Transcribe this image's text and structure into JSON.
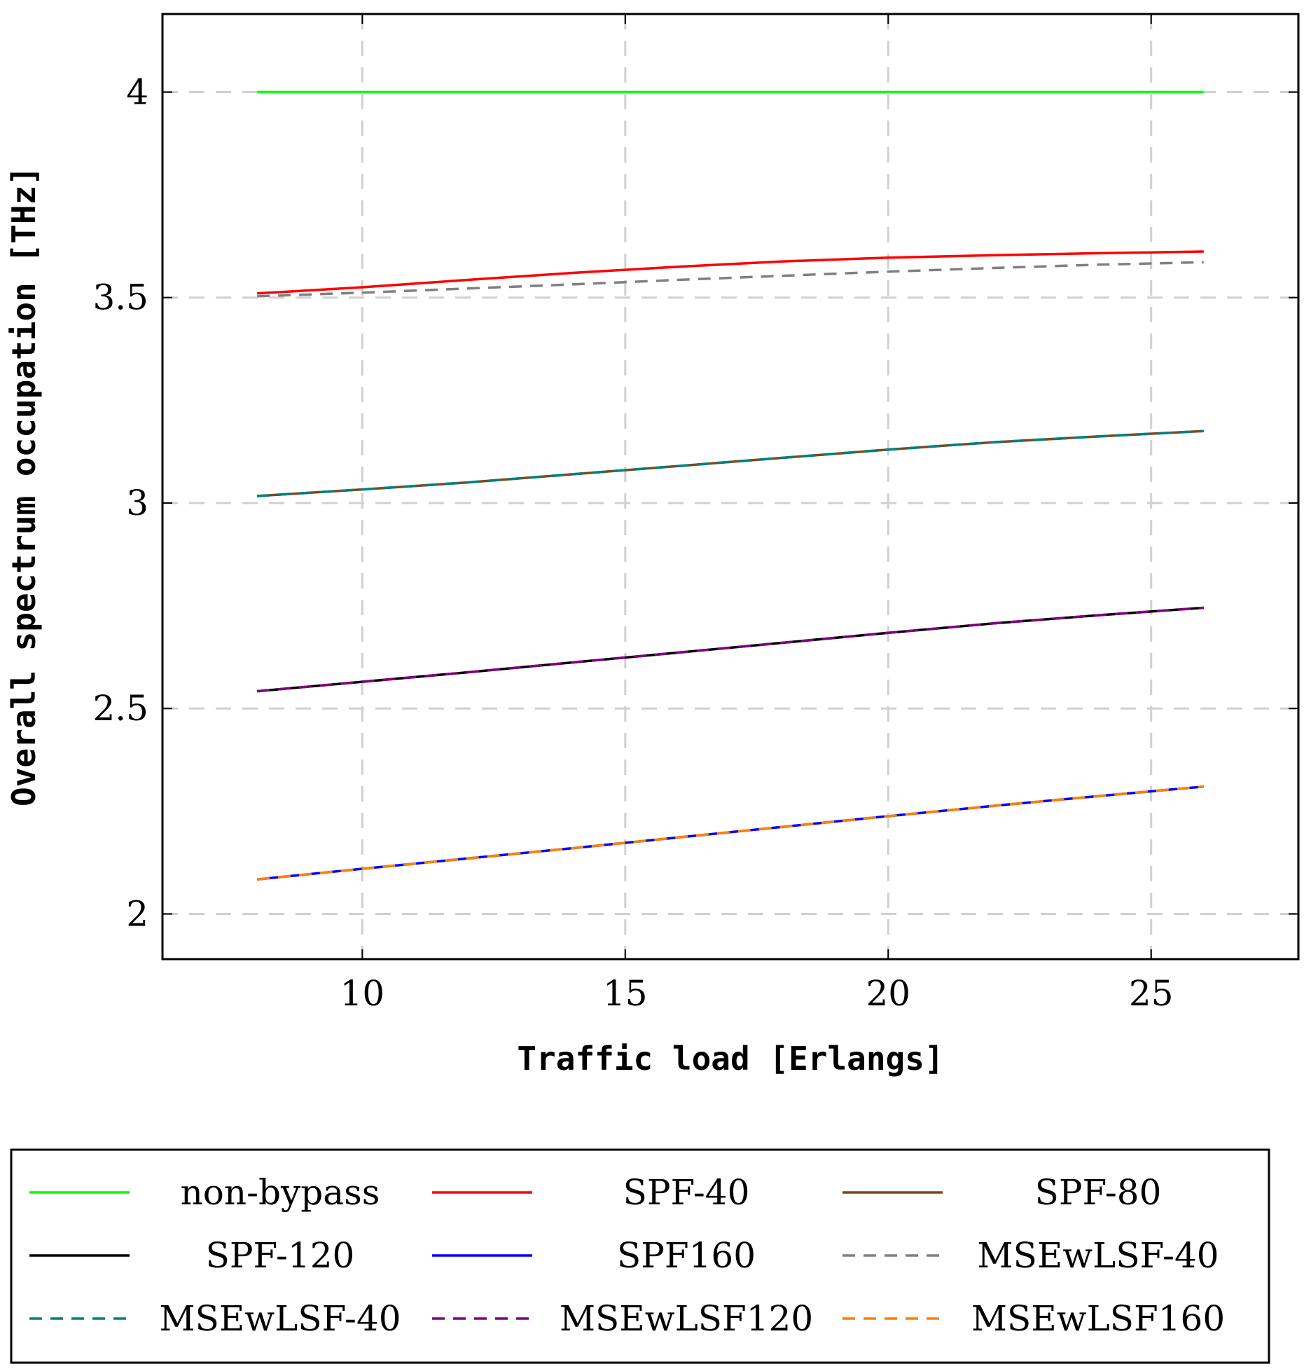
{
  "chart_data": {
    "type": "line",
    "title": "",
    "xlabel": "Traffic load [Erlangs]",
    "ylabel": "Overall spectrum occupation [THz]",
    "xlim": [
      6.2,
      27.8
    ],
    "ylim": [
      1.89,
      4.19
    ],
    "xticks": [
      10,
      15,
      20,
      25
    ],
    "yticks": [
      2,
      2.5,
      3,
      3.5,
      4
    ],
    "xtick_labels": [
      "10",
      "15",
      "20",
      "25"
    ],
    "ytick_labels": [
      "2",
      "2.5",
      "3",
      "3.5",
      "4"
    ],
    "grid": true,
    "legend_position": "bottom",
    "x": [
      8,
      10,
      12,
      14,
      16,
      18,
      20,
      22,
      24,
      26
    ],
    "series": [
      {
        "name": "non-bypass",
        "color": "#00ff00",
        "dash": "solid",
        "values": [
          4.0,
          4.0,
          4.0,
          4.0,
          4.0,
          4.0,
          4.0,
          4.0,
          4.0,
          4.0
        ]
      },
      {
        "name": "SPF-40",
        "color": "#ff0000",
        "dash": "solid",
        "values": [
          3.51,
          3.525,
          3.543,
          3.56,
          3.575,
          3.588,
          3.597,
          3.603,
          3.608,
          3.612
        ]
      },
      {
        "name": "SPF-80",
        "color": "#7a4a1e",
        "dash": "solid",
        "values": [
          3.017,
          3.033,
          3.05,
          3.07,
          3.09,
          3.11,
          3.13,
          3.148,
          3.162,
          3.175
        ]
      },
      {
        "name": "SPF-120",
        "color": "#000000",
        "dash": "solid",
        "values": [
          2.542,
          2.565,
          2.588,
          2.612,
          2.636,
          2.66,
          2.684,
          2.707,
          2.727,
          2.745
        ]
      },
      {
        "name": "SPF160",
        "color": "#0000ff",
        "dash": "solid",
        "values": [
          2.084,
          2.11,
          2.135,
          2.16,
          2.186,
          2.212,
          2.238,
          2.263,
          2.287,
          2.31
        ]
      },
      {
        "name": "MSEwLSF-40",
        "color": "#808080",
        "dash": "dashed",
        "values": [
          3.503,
          3.512,
          3.522,
          3.532,
          3.543,
          3.553,
          3.563,
          3.572,
          3.58,
          3.586
        ]
      },
      {
        "name": "MSEwLSF-40",
        "color": "#008080",
        "dash": "dashed",
        "values": [
          3.017,
          3.033,
          3.05,
          3.07,
          3.09,
          3.11,
          3.13,
          3.148,
          3.162,
          3.175
        ]
      },
      {
        "name": "MSEwLSF120",
        "color": "#800080",
        "dash": "dashed",
        "values": [
          2.542,
          2.565,
          2.588,
          2.612,
          2.636,
          2.66,
          2.684,
          2.707,
          2.727,
          2.745
        ]
      },
      {
        "name": "MSEwLSF160",
        "color": "#ff8000",
        "dash": "dashed",
        "values": [
          2.084,
          2.11,
          2.135,
          2.16,
          2.186,
          2.212,
          2.238,
          2.263,
          2.287,
          2.31
        ]
      }
    ]
  }
}
